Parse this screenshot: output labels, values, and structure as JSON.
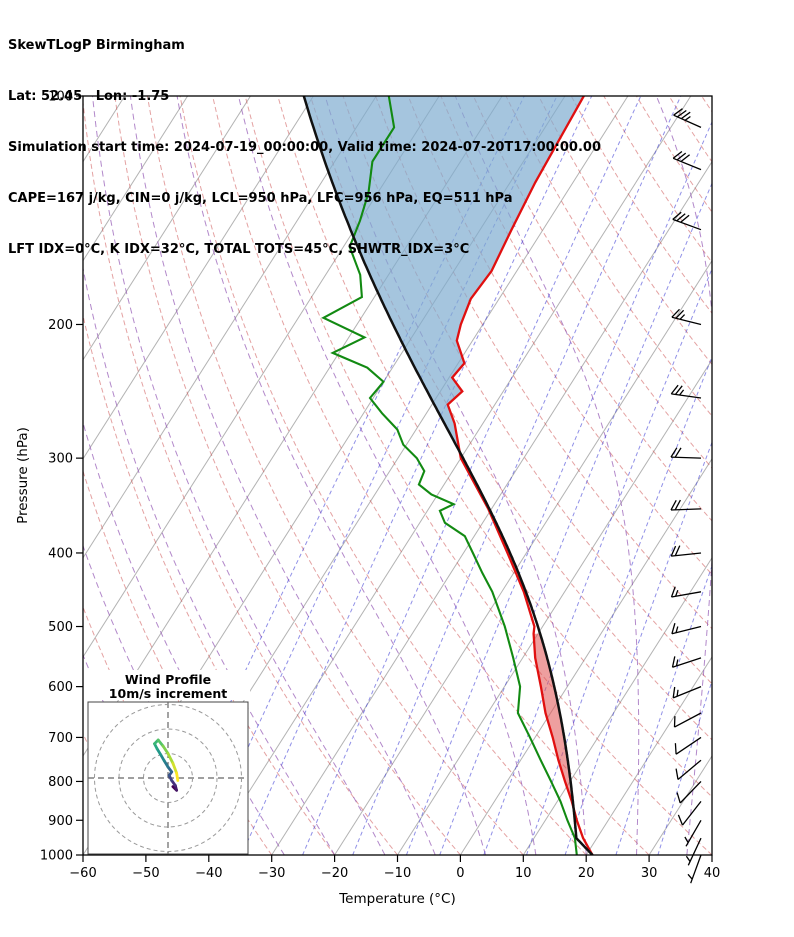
{
  "header": {
    "line1": "SkewTLogP Birmingham",
    "line2": "Lat: 52.45   Lon: -1.75",
    "line3": "Simulation start time: 2024-07-19_00:00:00, Valid time: 2024-07-20T17:00:00.00",
    "line4": "CAPE=167 j/kg, CIN=0 j/kg, LCL=950 hPa, LFC=956 hPa, EQ=511 hPa",
    "line5": "LFT IDX=0°C, K IDX=32°C, TOTAL TOTS=45°C, SHWTR_IDX=3°C"
  },
  "chart_data": {
    "type": "skewt-logp",
    "title": "SkewTLogP Birmingham",
    "location": {
      "name": "Birmingham",
      "lat": 52.45,
      "lon": -1.75
    },
    "xlabel": "Temperature (°C)",
    "ylabel": "Pressure (hPa)",
    "x_ticks": [
      -60,
      -50,
      -40,
      -30,
      -20,
      -10,
      0,
      10,
      20,
      30,
      40
    ],
    "y_ticks": [
      100,
      200,
      300,
      400,
      500,
      600,
      700,
      800,
      900,
      1000
    ],
    "xlim": [
      -60,
      40
    ],
    "plim": [
      100,
      1000
    ],
    "skew": 0.635,
    "temperature_profile": {
      "pressure": [
        1000,
        950,
        900,
        850,
        800,
        750,
        700,
        650,
        600,
        550,
        511,
        500,
        450,
        400,
        350,
        300,
        270,
        255,
        245,
        235,
        225,
        210,
        200,
        185,
        170,
        150,
        130,
        100
      ],
      "temp": [
        21.0,
        17.8,
        15.0,
        12.3,
        9.2,
        6.0,
        2.8,
        -0.8,
        -4.2,
        -8.0,
        -10.7,
        -11.3,
        -16.5,
        -23.0,
        -30.5,
        -40.0,
        -44.5,
        -47.5,
        -46.5,
        -49.5,
        -49.0,
        -52.5,
        -53.5,
        -54.5,
        -54.0,
        -55.0,
        -56.0,
        -57.0
      ]
    },
    "dewpoint_profile": {
      "pressure": [
        1000,
        950,
        900,
        850,
        800,
        750,
        700,
        650,
        600,
        550,
        500,
        450,
        425,
        400,
        380,
        365,
        352,
        345,
        335,
        325,
        312,
        300,
        288,
        275,
        262,
        250,
        238,
        228,
        218,
        208,
        196,
        184,
        172,
        158,
        146,
        134,
        122,
        110,
        100
      ],
      "temp": [
        18.5,
        16.5,
        13.5,
        10.5,
        7.0,
        3.2,
        -0.8,
        -5.2,
        -7.5,
        -11.5,
        -16.0,
        -21.5,
        -25.0,
        -28.5,
        -31.5,
        -36.0,
        -38.0,
        -36.5,
        -41.0,
        -44.0,
        -44.5,
        -47.0,
        -50.5,
        -53.0,
        -57.0,
        -60.5,
        -60.0,
        -64.0,
        -71.0,
        -67.5,
        -76.0,
        -72.0,
        -74.5,
        -79.0,
        -80.0,
        -81.5,
        -84.0,
        -84.0,
        -88.0
      ]
    },
    "parcel": {
      "surface_pressure": 1000,
      "surface_temp": 21.0,
      "lcl_pressure": 950,
      "lfc_pressure": 956,
      "eq_pressure": 511
    },
    "background": {
      "isotherms": {
        "min": -130,
        "max": 40,
        "step": 10
      },
      "dry_adiabats": {
        "min": -60,
        "max": 180,
        "step": 10
      },
      "moist_adiabats": {
        "min": -44,
        "max": 36,
        "step": 8
      },
      "mixing_ratios": [
        0.05,
        0.1,
        0.2,
        0.5,
        1,
        2,
        3,
        5,
        8,
        12,
        20,
        30
      ]
    },
    "wind_barbs": {
      "units": "m/s",
      "pressure": [
        1000,
        950,
        900,
        850,
        800,
        750,
        700,
        650,
        600,
        550,
        500,
        450,
        400,
        350,
        300,
        250,
        200,
        150,
        125,
        110
      ],
      "speed": [
        5,
        6,
        7,
        8,
        9,
        10,
        11,
        12,
        13,
        14,
        15,
        17,
        18,
        20,
        22,
        25,
        27,
        30,
        32,
        33
      ],
      "direction": [
        200,
        205,
        210,
        218,
        224,
        230,
        236,
        242,
        248,
        252,
        256,
        260,
        264,
        268,
        272,
        278,
        284,
        290,
        292,
        294
      ]
    },
    "hodograph": {
      "title_line1": "Wind Profile",
      "title_line2": "10m/s increment",
      "rings_ms": [
        10,
        20,
        30
      ],
      "levels": [
        1000,
        950,
        900,
        850,
        800,
        750,
        700,
        650,
        600,
        550,
        500,
        450,
        400,
        350,
        300,
        250,
        200
      ],
      "u": [
        2.0,
        3.5,
        3.0,
        1.5,
        0.5,
        1.5,
        0.0,
        -1.5,
        -3.0,
        -4.5,
        -5.5,
        -4.0,
        -2.0,
        0.0,
        2.0,
        3.5,
        4.0
      ],
      "v": [
        -3.5,
        -5.0,
        -3.0,
        -1.0,
        1.0,
        2.5,
        4.5,
        7.0,
        9.5,
        12.0,
        14.0,
        15.5,
        13.0,
        10.0,
        6.0,
        2.0,
        -1.0
      ]
    },
    "colors": {
      "temperature": "#e01010",
      "dewpoint": "#128a12",
      "parcel": "#111111",
      "cape_fill": "#7fadd0",
      "cin_fill": "#e05050",
      "isotherm": "#b3b3b3",
      "dry_adiabat": "rgba(205,85,85,0.55)",
      "moist_adiabat": "rgba(145,85,180,0.7)",
      "mixing_ratio": "rgba(70,70,215,0.6)",
      "barb": "#000000",
      "frame": "#000000",
      "hodo_ring": "#999999",
      "hodo_cross": "#666666",
      "viridis": [
        "#440154",
        "#46327e",
        "#365c8d",
        "#277f8e",
        "#1fa187",
        "#4ac16d",
        "#a0da39",
        "#fde725"
      ]
    }
  }
}
